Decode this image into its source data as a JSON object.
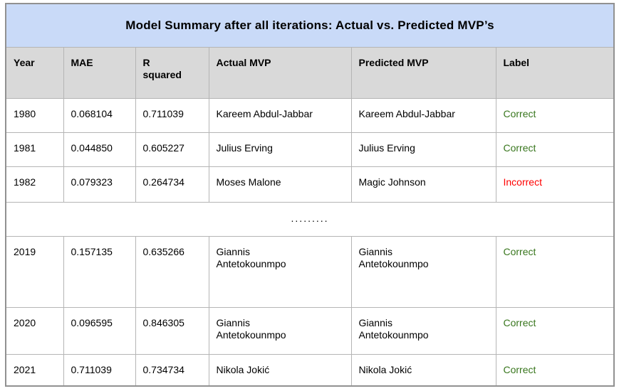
{
  "title": "Model Summary after all iterations: Actual vs. Predicted MVP’s",
  "table": {
    "columns": [
      "Year",
      "MAE",
      "R\nsquared",
      "Actual MVP",
      "Predicted MVP",
      "Label"
    ],
    "rows": [
      {
        "cells": [
          "1980",
          "0.068104",
          "0.711039",
          "Kareem Abdul-Jabbar",
          "Kareem Abdul-Jabbar",
          "Correct"
        ],
        "status": "correct"
      },
      {
        "cells": [
          "1981",
          "0.044850",
          "0.605227",
          "Julius Erving",
          "Julius Erving",
          "Correct"
        ],
        "status": "correct"
      },
      {
        "cells": [
          "1982",
          "0.079323",
          "0.264734",
          "Moses Malone",
          "Magic Johnson",
          "Incorrect"
        ],
        "status": "incorrect"
      },
      {
        "type": "ellipsis",
        "text": "........."
      },
      {
        "cells": [
          "2019",
          "0.157135",
          "0.635266",
          "Giannis\nAntetokounmpo",
          "Giannis\nAntetokounmpo",
          "Correct"
        ],
        "status": "correct"
      },
      {
        "cells": [
          "2020",
          "0.096595",
          "0.846305",
          "Giannis\nAntetokounmpo",
          "Giannis\nAntetokounmpo",
          "Correct"
        ],
        "status": "correct"
      },
      {
        "cells": [
          "2021",
          "0.711039",
          "0.734734",
          "Nikola Jokić",
          "Nikola Jokić",
          "Correct"
        ],
        "status": "correct"
      }
    ]
  },
  "colors": {
    "title_bg": "#c9daf8",
    "header_bg": "#d9d9d9",
    "correct": "#38761d",
    "incorrect": "#ff0000",
    "border_outer": "#919191",
    "border_inner": "#b5b5b5"
  }
}
